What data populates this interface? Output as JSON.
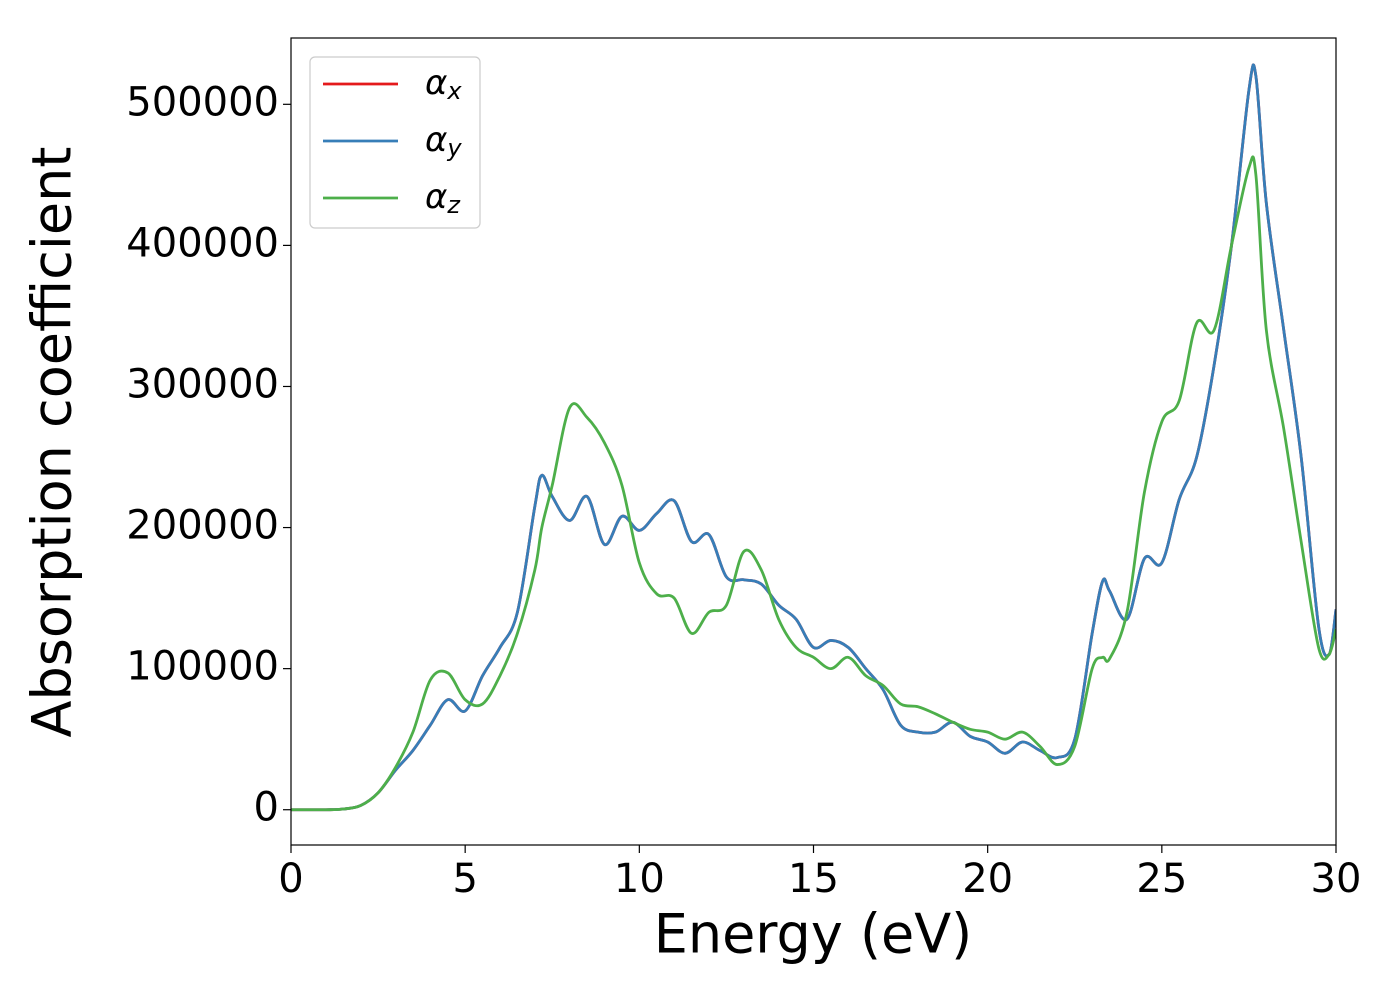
{
  "chart_data": {
    "type": "line",
    "xlabel": "Energy (eV)",
    "ylabel": "Absorption coefficient",
    "x": [
      0,
      1,
      1.5,
      2,
      2.5,
      3,
      3.5,
      4,
      4.5,
      5,
      5.5,
      6,
      6.5,
      7,
      7.2,
      7.5,
      8,
      8.5,
      9,
      9.5,
      10,
      10.5,
      11,
      11.5,
      12,
      12.5,
      13,
      13.5,
      14,
      14.5,
      15,
      15.5,
      16,
      16.5,
      17,
      17.5,
      18,
      18.5,
      19,
      19.5,
      20,
      20.5,
      21,
      21.5,
      22,
      22.5,
      23,
      23.3,
      23.5,
      24,
      24.5,
      25,
      25.5,
      26,
      26.5,
      27,
      27.5,
      27.7,
      28,
      28.5,
      29,
      29.5,
      29.8,
      30
    ],
    "series": [
      {
        "name": "αx",
        "color": "#e41a1c",
        "values": [
          0,
          0,
          500,
          3000,
          12000,
          28000,
          42000,
          60000,
          78000,
          70000,
          95000,
          115000,
          140000,
          215000,
          237000,
          222000,
          205000,
          222000,
          188000,
          208000,
          198000,
          210000,
          219000,
          190000,
          195000,
          165000,
          163000,
          160000,
          145000,
          135000,
          115000,
          120000,
          115000,
          100000,
          85000,
          60000,
          55000,
          55000,
          62000,
          52000,
          48000,
          40000,
          48000,
          42000,
          37000,
          50000,
          125000,
          162000,
          155000,
          135000,
          178000,
          175000,
          220000,
          250000,
          315000,
          400000,
          510000,
          520000,
          430000,
          340000,
          250000,
          130000,
          110000,
          142000
        ]
      },
      {
        "name": "αy",
        "color": "#377eb8",
        "values": [
          0,
          0,
          500,
          3000,
          12000,
          28000,
          42000,
          60000,
          78000,
          70000,
          95000,
          115000,
          140000,
          215000,
          237000,
          222000,
          205000,
          222000,
          188000,
          208000,
          198000,
          210000,
          219000,
          190000,
          195000,
          165000,
          163000,
          160000,
          145000,
          135000,
          115000,
          120000,
          115000,
          100000,
          85000,
          60000,
          55000,
          55000,
          62000,
          52000,
          48000,
          40000,
          48000,
          42000,
          37000,
          50000,
          125000,
          162000,
          155000,
          135000,
          178000,
          175000,
          220000,
          250000,
          315000,
          400000,
          510000,
          520000,
          430000,
          340000,
          250000,
          130000,
          110000,
          142000
        ]
      },
      {
        "name": "αz",
        "color": "#4daf4a",
        "values": [
          0,
          0,
          500,
          3000,
          12000,
          30000,
          55000,
          92000,
          97000,
          78000,
          75000,
          95000,
          125000,
          170000,
          200000,
          230000,
          285000,
          278000,
          260000,
          230000,
          175000,
          153000,
          150000,
          125000,
          140000,
          145000,
          183000,
          170000,
          135000,
          115000,
          108000,
          100000,
          108000,
          95000,
          88000,
          75000,
          73000,
          68000,
          62000,
          57000,
          55000,
          50000,
          55000,
          45000,
          32000,
          45000,
          100000,
          108000,
          107000,
          140000,
          225000,
          275000,
          290000,
          345000,
          340000,
          400000,
          455000,
          450000,
          340000,
          270000,
          190000,
          115000,
          110000,
          128000
        ]
      }
    ],
    "xlim": [
      0,
      30
    ],
    "xticks": [
      0,
      5,
      10,
      15,
      20,
      25,
      30
    ],
    "ylim": [
      -25000,
      547000
    ],
    "yticks": [
      0,
      100000,
      200000,
      300000,
      400000,
      500000
    ],
    "legend": "upper left"
  }
}
